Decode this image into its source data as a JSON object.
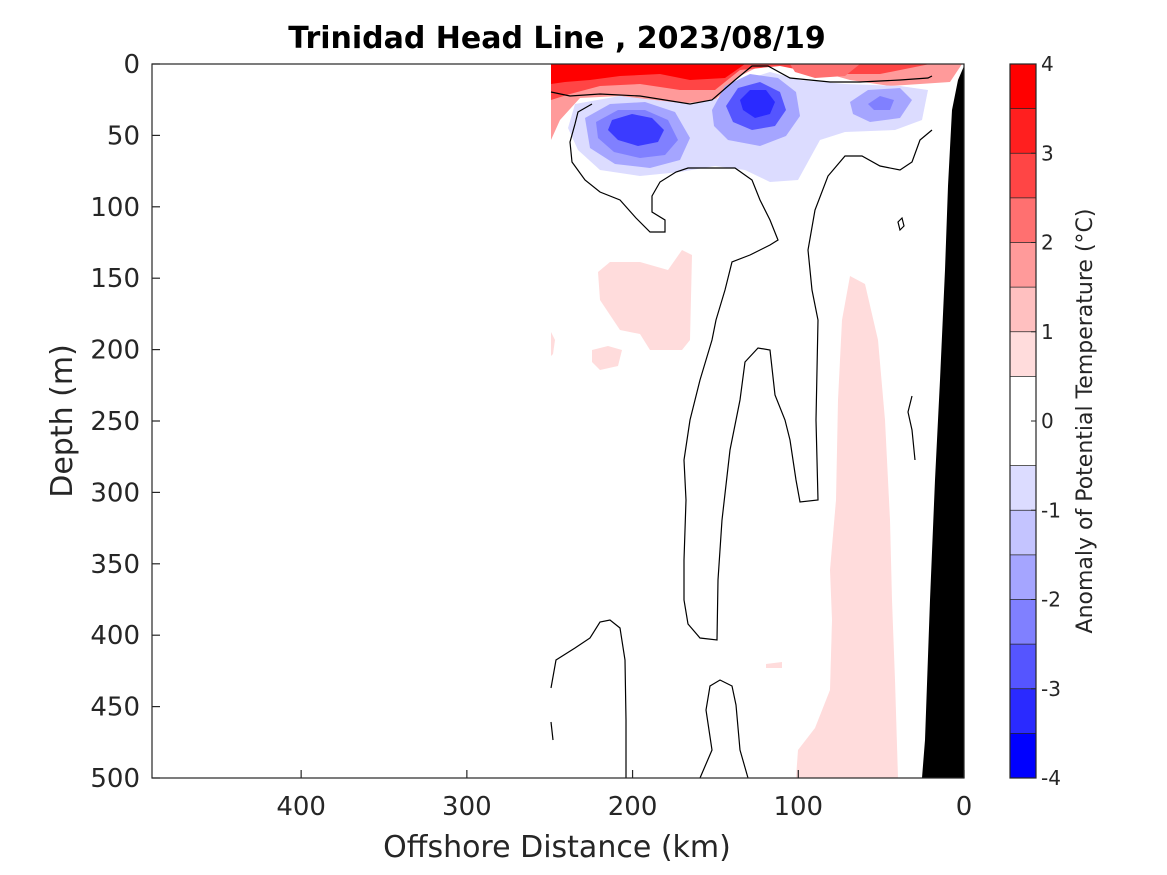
{
  "chart_data": {
    "type": "heatmap",
    "title": "Trinidad Head Line , 2023/08/19",
    "xlabel": "Offshore Distance (km)",
    "ylabel": "Depth (m)",
    "xlim": [
      490,
      0
    ],
    "ylim": [
      0,
      500
    ],
    "x_reversed": true,
    "y_reversed": true,
    "x_ticks": [
      400,
      300,
      200,
      100,
      0
    ],
    "y_ticks": [
      0,
      50,
      100,
      150,
      200,
      250,
      300,
      350,
      400,
      450,
      500
    ],
    "colorbar": {
      "label": "Anomaly of Potential Temperature (°C)",
      "range": [
        -4,
        4
      ],
      "ticks": [
        -4,
        -3,
        -2,
        -1,
        0,
        1,
        2,
        3,
        4
      ],
      "levels": [
        -4,
        -3.5,
        -3,
        -2.5,
        -2,
        -1.5,
        -1,
        -0.5,
        0.5,
        1,
        1.5,
        2,
        2.5,
        3,
        3.5,
        4
      ],
      "colors": [
        "#0000ff",
        "#2a2aff",
        "#5555ff",
        "#8080ff",
        "#a5a5ff",
        "#c4c4ff",
        "#dcdcff",
        "#ffffff",
        "#ffdcdc",
        "#ffc0c0",
        "#ff9a9a",
        "#ff7070",
        "#ff4545",
        "#ff1f1f",
        "#ff0000"
      ]
    },
    "shelf_color": "#000000",
    "features": [
      {
        "kind": "warm surface layer",
        "x_range": [
          250,
          20
        ],
        "depth_range": [
          0,
          30
        ],
        "max_anomaly": 3.5
      },
      {
        "kind": "cold core",
        "x": 200,
        "depth": 42,
        "min_anomaly": -3.0
      },
      {
        "kind": "cold core",
        "x": 123,
        "depth": 25,
        "min_anomaly": -3.0
      },
      {
        "kind": "cold core",
        "x": 50,
        "depth": 28,
        "min_anomaly": -1.5
      },
      {
        "kind": "weak warm patch",
        "x_range": [
          220,
          165
        ],
        "depth_range": [
          135,
          200
        ],
        "anomaly": 0.6
      },
      {
        "kind": "weak warm patch",
        "x_range": [
          90,
          40
        ],
        "depth_range": [
          150,
          500
        ],
        "anomaly": 0.6
      }
    ],
    "contour_level": 0,
    "contour_color": "#000000"
  }
}
